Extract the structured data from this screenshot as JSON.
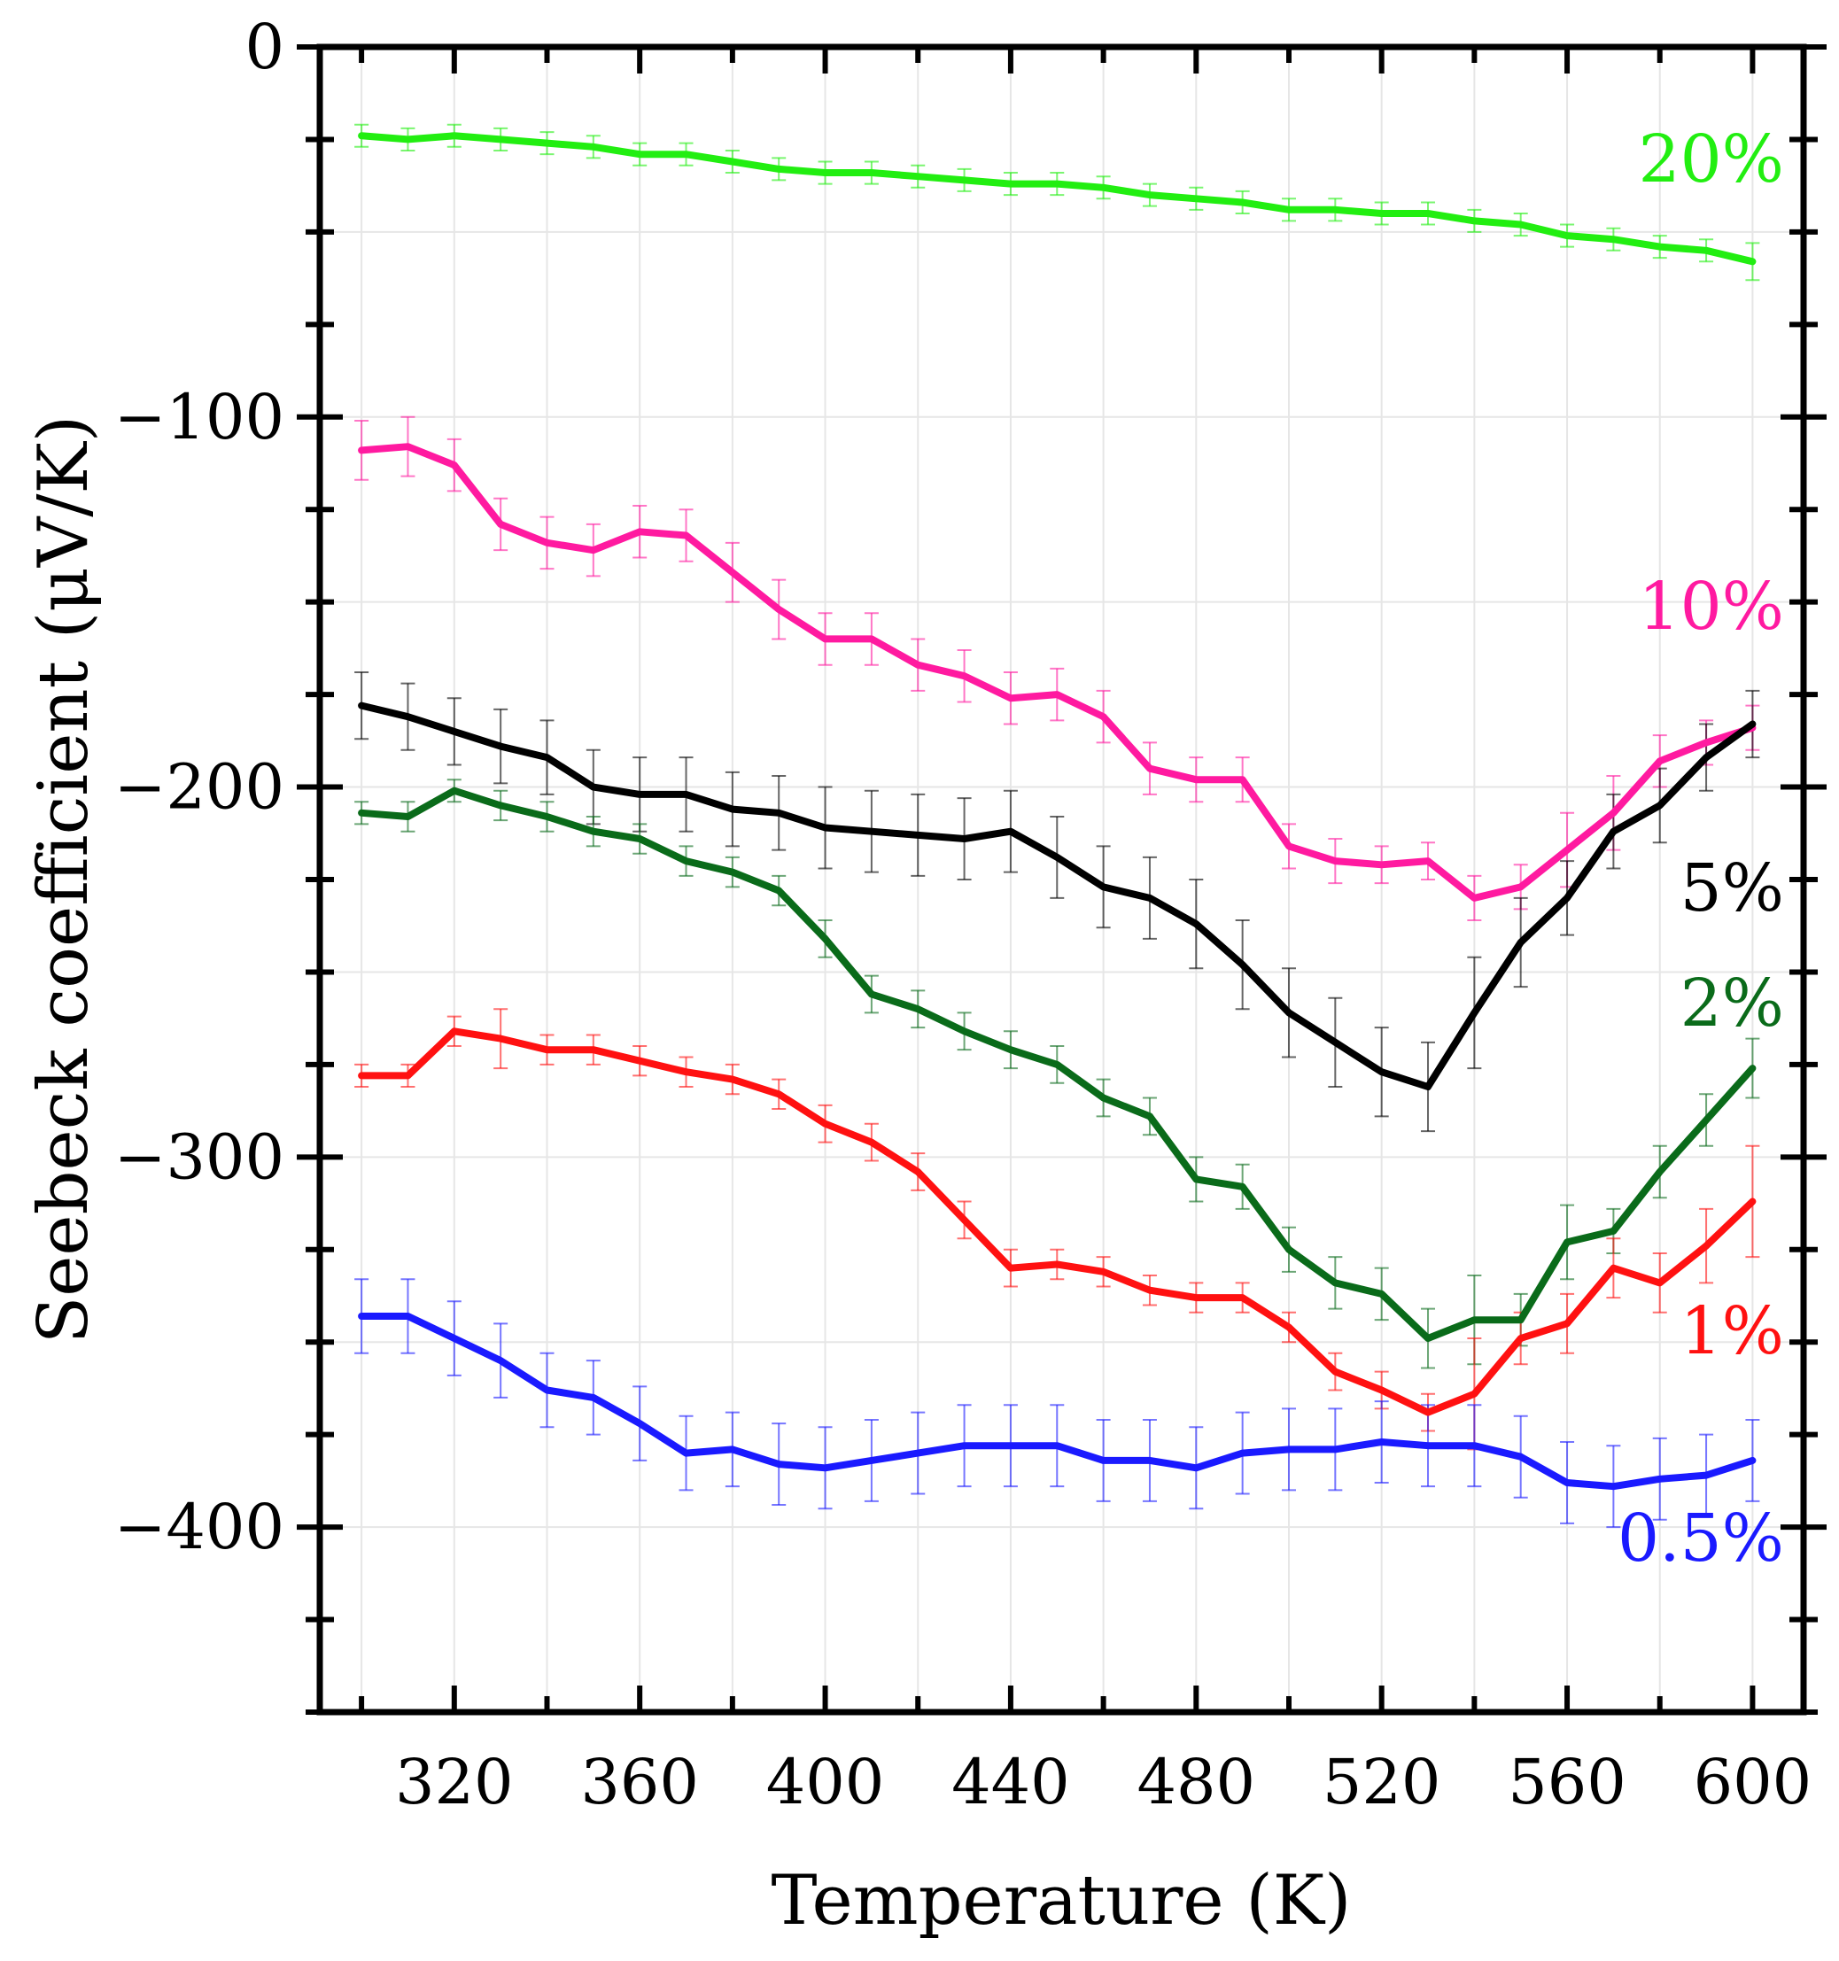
{
  "chart_data": {
    "type": "line",
    "title": "",
    "xlabel": "Temperature (K)",
    "ylabel": "Seebeck coefficient (μV/K)",
    "xlim": [
      291,
      611
    ],
    "ylim": [
      -450,
      0
    ],
    "xticks": [
      320,
      360,
      400,
      440,
      480,
      520,
      560,
      600
    ],
    "xtick_labels": [
      "320",
      "360",
      "400",
      "440",
      "480",
      "520",
      "560",
      "600"
    ],
    "yticks": [
      0,
      -100,
      -200,
      -300,
      -400
    ],
    "ytick_labels": [
      "0",
      "−100",
      "−200",
      "−300",
      "−400"
    ],
    "grid": true,
    "legend": "inline labels at right end of each series",
    "x": [
      300,
      310,
      320,
      330,
      340,
      350,
      360,
      370,
      380,
      390,
      400,
      410,
      420,
      430,
      440,
      450,
      460,
      470,
      480,
      490,
      500,
      510,
      520,
      530,
      540,
      550,
      560,
      570,
      580,
      590,
      600
    ],
    "series": [
      {
        "name": "20%",
        "label": "20%",
        "color": "#22ee11",
        "values": [
          -24,
          -25,
          -24,
          -25,
          -26,
          -27,
          -29,
          -29,
          -31,
          -33,
          -34,
          -34,
          -35,
          -36,
          -37,
          -37,
          -38,
          -40,
          -41,
          -42,
          -44,
          -44,
          -45,
          -45,
          -47,
          -48,
          -51,
          -52,
          -54,
          -55,
          -58
        ],
        "error": [
          3,
          3,
          3,
          3,
          3,
          3,
          3,
          3,
          3,
          3,
          3,
          3,
          3,
          3,
          3,
          3,
          3,
          3,
          3,
          3,
          3,
          3,
          3,
          3,
          3,
          3,
          3,
          3,
          3,
          3,
          5
        ]
      },
      {
        "name": "10%",
        "label": "10%",
        "color": "#ff1aa0",
        "values": [
          -109,
          -108,
          -113,
          -129,
          -134,
          -136,
          -131,
          -132,
          -142,
          -152,
          -160,
          -160,
          -167,
          -170,
          -176,
          -175,
          -181,
          -195,
          -198,
          -198,
          -216,
          -220,
          -221,
          -220,
          -230,
          -227,
          -217,
          -207,
          -193,
          -188,
          -184
        ],
        "error": [
          8,
          8,
          7,
          7,
          7,
          7,
          7,
          7,
          8,
          8,
          7,
          7,
          7,
          7,
          7,
          7,
          7,
          7,
          6,
          6,
          6,
          6,
          5,
          5,
          6,
          6,
          10,
          10,
          7,
          6,
          6
        ]
      },
      {
        "name": "5%",
        "label": "5%",
        "color": "#000000",
        "values": [
          -178,
          -181,
          -185,
          -189,
          -192,
          -200,
          -202,
          -202,
          -206,
          -207,
          -211,
          -212,
          -213,
          -214,
          -212,
          -219,
          -227,
          -230,
          -237,
          -248,
          -261,
          -269,
          -277,
          -281,
          -261,
          -242,
          -230,
          -212,
          -205,
          -192,
          -183
        ],
        "error": [
          9,
          9,
          9,
          10,
          10,
          10,
          10,
          10,
          10,
          10,
          11,
          11,
          11,
          11,
          11,
          11,
          11,
          11,
          12,
          12,
          12,
          12,
          12,
          12,
          15,
          12,
          10,
          10,
          10,
          9,
          9
        ]
      },
      {
        "name": "2%",
        "label": "2%",
        "color": "#0a6b1a",
        "values": [
          -207,
          -208,
          -201,
          -205,
          -208,
          -212,
          -214,
          -220,
          -223,
          -228,
          -241,
          -256,
          -260,
          -266,
          -271,
          -275,
          -284,
          -289,
          -306,
          -308,
          -325,
          -334,
          -337,
          -349,
          -344,
          -344,
          -323,
          -320,
          -304,
          -290,
          -276
        ],
        "error": [
          3,
          4,
          3,
          4,
          4,
          4,
          4,
          4,
          4,
          4,
          5,
          5,
          5,
          5,
          5,
          5,
          5,
          5,
          6,
          6,
          6,
          7,
          7,
          8,
          12,
          7,
          10,
          6,
          7,
          7,
          8
        ]
      },
      {
        "name": "1%",
        "label": "1%",
        "color": "#ff1111",
        "values": [
          -278,
          -278,
          -266,
          -268,
          -271,
          -271,
          -274,
          -277,
          -279,
          -283,
          -291,
          -296,
          -304,
          -317,
          -330,
          -329,
          -331,
          -336,
          -338,
          -338,
          -346,
          -358,
          -363,
          -369,
          -364,
          -349,
          -345,
          -330,
          -334,
          -324,
          -312
        ],
        "error": [
          3,
          3,
          4,
          8,
          4,
          4,
          4,
          4,
          4,
          4,
          5,
          5,
          5,
          5,
          5,
          4,
          4,
          4,
          4,
          4,
          4,
          5,
          5,
          5,
          15,
          7,
          8,
          8,
          8,
          10,
          15
        ]
      },
      {
        "name": "0.5%",
        "label": "0.5%",
        "color": "#1a1aff",
        "values": [
          -343,
          -343,
          -349,
          -355,
          -363,
          -365,
          -372,
          -380,
          -379,
          -383,
          -384,
          -382,
          -380,
          -378,
          -378,
          -378,
          -382,
          -382,
          -384,
          -380,
          -379,
          -379,
          -377,
          -378,
          -378,
          -381,
          -388,
          -389,
          -387,
          -386,
          -382
        ],
        "error": [
          10,
          10,
          10,
          10,
          10,
          10,
          10,
          10,
          10,
          11,
          11,
          11,
          11,
          11,
          11,
          11,
          11,
          11,
          11,
          11,
          11,
          11,
          11,
          11,
          11,
          11,
          11,
          11,
          11,
          11,
          11
        ]
      }
    ]
  }
}
